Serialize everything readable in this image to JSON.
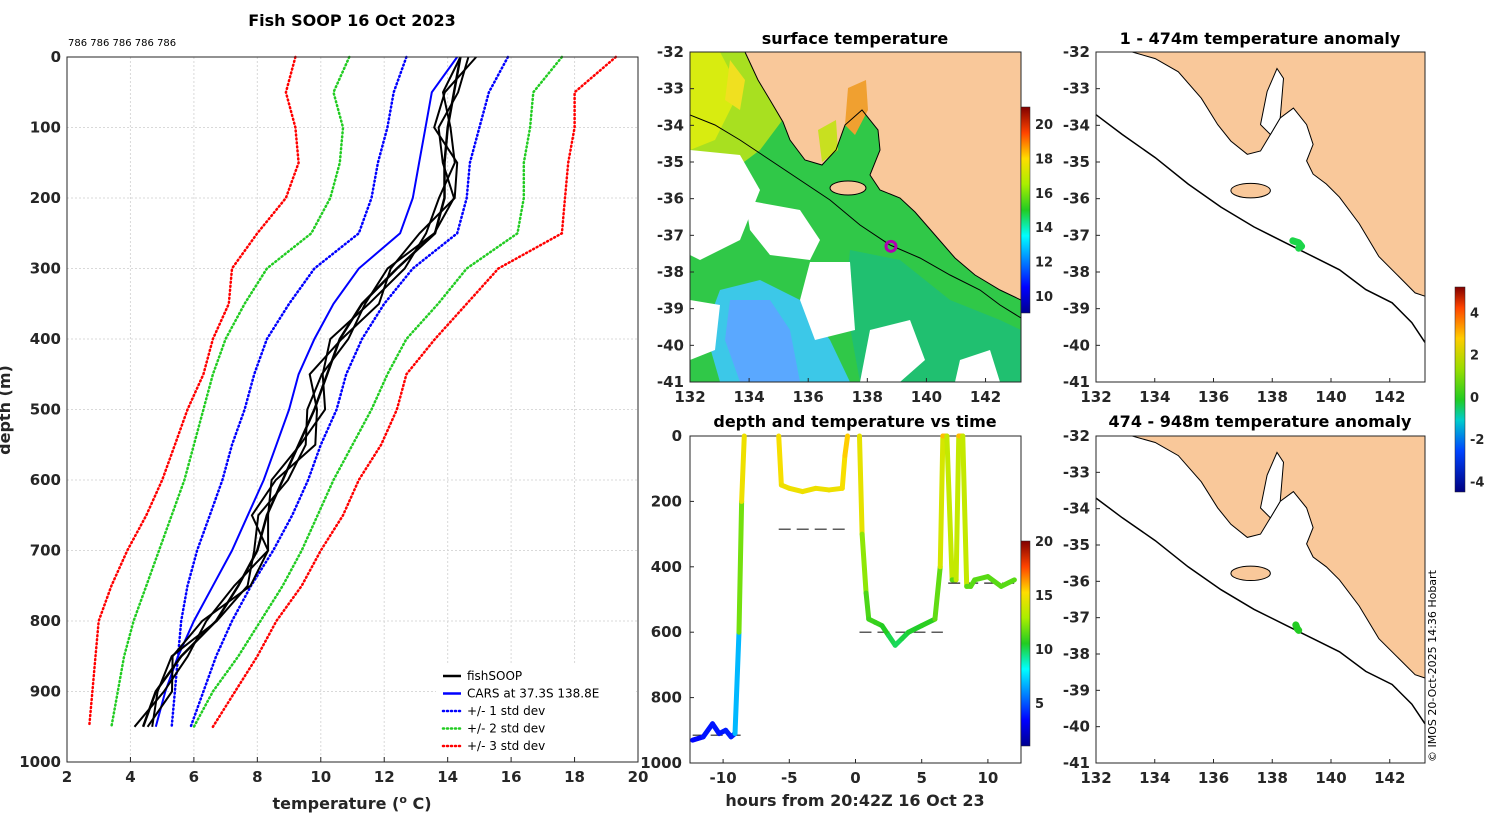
{
  "colors": {
    "land": "#f9c89a",
    "fishsoop": "#000000",
    "cars": "#0000ff",
    "std1": "#0000ff",
    "std2": "#22cc22",
    "std3": "#ff0000",
    "marker": "#b000b0"
  },
  "profile": {
    "title": "Fish SOOP 16 Oct 2023",
    "top_label": "786 786 786 786 786",
    "axis_title": "temperature (",
    "axis_title_sup": "o",
    "axis_title_end": " C)",
    "ylabel": "depth (m)"
  },
  "surface_map": {
    "title": "surface temperature",
    "x_ticks": [
      "132",
      "134",
      "136",
      "138",
      "140",
      "142"
    ],
    "y_ticks": [
      "-32",
      "-33",
      "-34",
      "-35",
      "-36",
      "-37",
      "-38",
      "-39",
      "-40",
      "-41"
    ],
    "colorbar_ticks": [
      "20",
      "18",
      "16",
      "14",
      "12",
      "10"
    ]
  },
  "anomaly_map_1": {
    "title": "1 - 474m temperature anomaly",
    "x_ticks": [
      "132",
      "134",
      "136",
      "138",
      "140",
      "142"
    ],
    "y_ticks": [
      "-32",
      "-33",
      "-34",
      "-35",
      "-36",
      "-37",
      "-38",
      "-39",
      "-40",
      "-41"
    ]
  },
  "anomaly_map_2": {
    "title": "474 - 948m temperature anomaly",
    "x_ticks": [
      "132",
      "134",
      "136",
      "138",
      "140",
      "142"
    ],
    "y_ticks": [
      "-32",
      "-33",
      "-34",
      "-35",
      "-36",
      "-37",
      "-38",
      "-39",
      "-40",
      "-41"
    ]
  },
  "anomaly_colorbar": {
    "ticks": [
      "4",
      "2",
      "0",
      "-2",
      "-4"
    ]
  },
  "credit": "© IMOS 20-Oct-2025 14:36 Hobart",
  "chart_data": [
    {
      "type": "line",
      "title": "Fish SOOP 16 Oct 2023",
      "xlabel": "temperature (o C)",
      "ylabel": "depth (m)",
      "xlim": [
        2,
        20
      ],
      "ylim": [
        1000,
        0
      ],
      "x_ticks": [
        2,
        4,
        6,
        8,
        10,
        12,
        14,
        16,
        18,
        20
      ],
      "y_ticks": [
        0,
        100,
        200,
        300,
        400,
        500,
        600,
        700,
        800,
        900,
        1000
      ],
      "grid": true,
      "legend_position": "bottom-right",
      "legend": [
        "fishSOOP",
        "CARS at 37.3S 138.8E",
        "+/- 1 std dev",
        "+/- 2 std dev",
        "+/- 3 std dev"
      ],
      "depth": [
        0,
        50,
        100,
        150,
        200,
        250,
        300,
        350,
        400,
        450,
        500,
        550,
        600,
        650,
        700,
        750,
        800,
        850,
        900,
        950
      ],
      "series": [
        {
          "name": "fishSOOP",
          "style": "solid",
          "color": "#000000",
          "values": [
            14.4,
            14.2,
            14.0,
            13.9,
            13.9,
            13.6,
            12.4,
            11.3,
            10.6,
            10.2,
            9.8,
            9.3,
            8.8,
            8.3,
            8.0,
            7.4,
            6.7,
            5.6,
            4.8,
            4.4
          ]
        },
        {
          "name": "CARS at 37.3S 138.8E",
          "style": "solid",
          "color": "#0000ff",
          "values": [
            14.3,
            13.5,
            13.3,
            13.1,
            12.9,
            12.5,
            11.2,
            10.4,
            9.8,
            9.3,
            9.0,
            8.6,
            8.2,
            7.7,
            7.2,
            6.6,
            6.0,
            5.5,
            5.1,
            4.8
          ]
        },
        {
          "name": "-1 std dev",
          "style": "dotted",
          "color": "#0000ff",
          "values": [
            12.7,
            12.3,
            12.1,
            11.8,
            11.6,
            11.2,
            9.8,
            9.0,
            8.3,
            7.9,
            7.6,
            7.2,
            6.9,
            6.5,
            6.1,
            5.8,
            5.6,
            5.5,
            5.4,
            5.3
          ]
        },
        {
          "name": "+1 std dev",
          "style": "dotted",
          "color": "#0000ff",
          "values": [
            15.9,
            15.3,
            15.0,
            14.7,
            14.6,
            14.3,
            12.9,
            12.0,
            11.3,
            10.8,
            10.5,
            10.0,
            9.6,
            9.1,
            8.5,
            7.8,
            7.2,
            6.7,
            6.3,
            5.9
          ]
        },
        {
          "name": "-2 std dev",
          "style": "dotted",
          "color": "#22cc22",
          "values": [
            10.9,
            10.4,
            10.7,
            10.6,
            10.3,
            9.7,
            8.3,
            7.6,
            7.0,
            6.6,
            6.3,
            6.0,
            5.7,
            5.3,
            4.9,
            4.5,
            4.1,
            3.8,
            3.6,
            3.4
          ]
        },
        {
          "name": "+2 std dev",
          "style": "dotted",
          "color": "#22cc22",
          "values": [
            17.6,
            16.7,
            16.6,
            16.4,
            16.4,
            16.2,
            14.6,
            13.7,
            12.7,
            12.1,
            11.6,
            11.0,
            10.4,
            9.9,
            9.4,
            8.8,
            8.1,
            7.4,
            6.6,
            6.0
          ]
        },
        {
          "name": "-3 std dev",
          "style": "dotted",
          "color": "#ff0000",
          "values": [
            9.2,
            8.9,
            9.2,
            9.3,
            8.9,
            8.0,
            7.2,
            7.1,
            6.6,
            6.3,
            5.8,
            5.4,
            5.0,
            4.5,
            3.9,
            3.4,
            3.0,
            2.9,
            2.8,
            2.7
          ]
        },
        {
          "name": "+3 std dev",
          "style": "dotted",
          "color": "#ff0000",
          "values": [
            19.3,
            18.0,
            18.0,
            17.8,
            17.7,
            17.6,
            15.6,
            14.6,
            13.6,
            12.7,
            12.4,
            11.9,
            11.2,
            10.7,
            10.0,
            9.4,
            8.6,
            8.0,
            7.3,
            6.6
          ]
        }
      ]
    },
    {
      "type": "line",
      "title": "depth and temperature vs time",
      "xlabel": "hours from 20:42Z 16 Oct 23",
      "ylabel": "depth (m)",
      "xlim": [
        -12.5,
        12.5
      ],
      "ylim": [
        1000,
        0
      ],
      "x_ticks": [
        -10,
        -5,
        0,
        5,
        10
      ],
      "y_ticks": [
        0,
        200,
        400,
        600,
        800,
        1000
      ],
      "colorbar_ticks": [
        20,
        15,
        10,
        5
      ],
      "series": [
        {
          "name": "trace",
          "x": [
            -12.3,
            -11.5,
            -10.8,
            -10.3,
            -9.8,
            -9.4,
            -9.1,
            -8.8,
            -8.6,
            -8.4
          ],
          "y": [
            930,
            920,
            880,
            910,
            900,
            920,
            910,
            600,
            200,
            0
          ],
          "temperature": [
            3.5,
            3.7,
            4.0,
            3.8,
            4.0,
            4.1,
            4.2,
            10,
            15,
            16
          ]
        },
        {
          "name": "trace",
          "x": [
            -5.8,
            -5.6,
            -5,
            -4,
            -3,
            -2,
            -1,
            -0.8,
            -0.6
          ],
          "y": [
            0,
            150,
            160,
            170,
            160,
            165,
            160,
            60,
            0
          ],
          "temperature": [
            16,
            15.5,
            15.5,
            15.5,
            15.5,
            15.5,
            15.5,
            16,
            16.5
          ]
        },
        {
          "name": "trace",
          "x": [
            0.3,
            0.5,
            0.8,
            1,
            1.5,
            2,
            2.5,
            3,
            3.5,
            4,
            5,
            6,
            6.4,
            6.6,
            6.9,
            7.3,
            7.6,
            7.8,
            8.1,
            8.4,
            8.7,
            9,
            10,
            11,
            12
          ],
          "y": [
            0,
            300,
            480,
            560,
            570,
            580,
            610,
            640,
            620,
            600,
            580,
            560,
            400,
            0,
            0,
            440,
            440,
            0,
            0,
            460,
            460,
            440,
            430,
            460,
            440
          ],
          "temperature": [
            16.5,
            14,
            12,
            11.5,
            11.5,
            11.2,
            10.8,
            10.2,
            10.5,
            10.8,
            11,
            11.3,
            13,
            16.5,
            16.5,
            12,
            12,
            16.5,
            16.5,
            12,
            12,
            12,
            12,
            12,
            12
          ]
        }
      ],
      "reference_lines": [
        {
          "x": [
            -12.3,
            -8.4
          ],
          "y": 915
        },
        {
          "x": [
            -5.8,
            -0.6
          ],
          "y": 285
        },
        {
          "x": [
            0.3,
            6.6
          ],
          "y": 600
        },
        {
          "x": [
            7.0,
            12
          ],
          "y": 450
        }
      ]
    },
    {
      "type": "heatmap",
      "title": "surface temperature",
      "xlim": [
        132,
        143.2
      ],
      "ylim": [
        -41,
        -32
      ],
      "colorbar_range": [
        9,
        21
      ],
      "marker": {
        "lon": 138.8,
        "lat": -37.3
      }
    },
    {
      "type": "heatmap",
      "title": "1 - 474m temperature anomaly",
      "xlim": [
        132,
        143.2
      ],
      "ylim": [
        -41,
        -32
      ],
      "colorbar_range": [
        -4,
        5
      ],
      "track": {
        "lon": [
          138.7,
          138.9,
          139.0,
          138.9
        ],
        "lat": [
          -37.15,
          -37.2,
          -37.3,
          -37.35
        ],
        "anomaly": 0.3
      }
    },
    {
      "type": "heatmap",
      "title": "474 - 948m temperature anomaly",
      "xlim": [
        132,
        143.2
      ],
      "ylim": [
        -41,
        -32
      ],
      "colorbar_range": [
        -4,
        5
      ],
      "track": {
        "lon": [
          138.8,
          138.85,
          138.9
        ],
        "lat": [
          -37.2,
          -37.3,
          -37.35
        ],
        "anomaly": 0.5
      }
    }
  ]
}
